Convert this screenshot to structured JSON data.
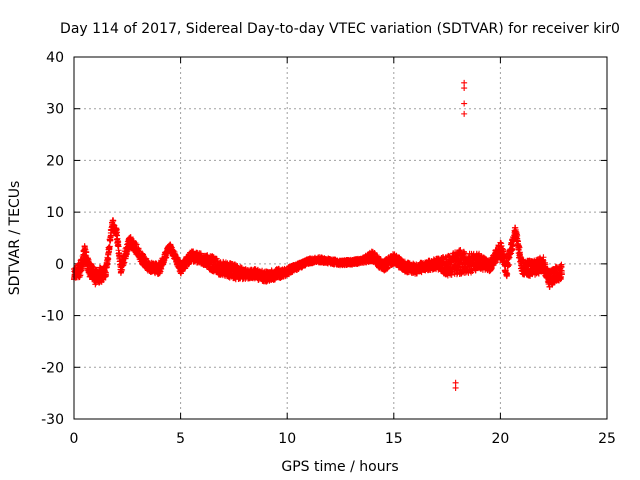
{
  "chart_data": {
    "type": "scatter",
    "title": "Day 114 of 2017, Sidereal Day-to-day VTEC variation (SDTVAR) for receiver kir0",
    "xlabel": "GPS time / hours",
    "ylabel": "SDTVAR / TECUs",
    "xlim": [
      0,
      25
    ],
    "ylim": [
      -30,
      40
    ],
    "xticks": [
      0,
      5,
      10,
      15,
      20,
      25
    ],
    "yticks": [
      -30,
      -20,
      -10,
      0,
      10,
      20,
      30,
      40
    ],
    "xtick_labels": [
      "0",
      "5",
      "10",
      "15",
      "20",
      "25"
    ],
    "ytick_labels": [
      "-30",
      "-20",
      "-10",
      "0",
      "10",
      "20",
      "30",
      "40"
    ],
    "grid": true,
    "marker": "+",
    "color": "#ff0000",
    "series": [
      {
        "name": "SDTVAR",
        "outliers": [
          {
            "x": 18.3,
            "y": 35.0
          },
          {
            "x": 18.3,
            "y": 34.0
          },
          {
            "x": 18.3,
            "y": 31.0
          },
          {
            "x": 18.3,
            "y": 29.0
          },
          {
            "x": 17.9,
            "y": -23.0
          },
          {
            "x": 17.9,
            "y": -24.0
          }
        ],
        "trace": [
          {
            "x": 0.0,
            "y": -2.0,
            "spread": 1.0
          },
          {
            "x": 0.3,
            "y": -1.0,
            "spread": 1.5
          },
          {
            "x": 0.5,
            "y": 2.0,
            "spread": 1.5
          },
          {
            "x": 0.7,
            "y": -1.0,
            "spread": 1.5
          },
          {
            "x": 1.0,
            "y": -2.5,
            "spread": 1.5
          },
          {
            "x": 1.3,
            "y": -2.0,
            "spread": 1.5
          },
          {
            "x": 1.5,
            "y": -1.5,
            "spread": 1.0
          },
          {
            "x": 1.8,
            "y": 8.0,
            "spread": 0.8
          },
          {
            "x": 2.0,
            "y": 6.0,
            "spread": 0.8
          },
          {
            "x": 2.2,
            "y": -1.0,
            "spread": 1.0
          },
          {
            "x": 2.6,
            "y": 4.5,
            "spread": 1.0
          },
          {
            "x": 2.9,
            "y": 3.0,
            "spread": 1.0
          },
          {
            "x": 3.2,
            "y": 1.0,
            "spread": 1.0
          },
          {
            "x": 3.5,
            "y": -0.5,
            "spread": 1.0
          },
          {
            "x": 4.0,
            "y": -1.0,
            "spread": 1.0
          },
          {
            "x": 4.5,
            "y": 3.5,
            "spread": 0.5
          },
          {
            "x": 5.0,
            "y": -1.0,
            "spread": 1.0
          },
          {
            "x": 5.5,
            "y": 1.5,
            "spread": 1.0
          },
          {
            "x": 6.0,
            "y": 1.0,
            "spread": 1.0
          },
          {
            "x": 6.5,
            "y": 0.0,
            "spread": 1.5
          },
          {
            "x": 7.0,
            "y": -1.0,
            "spread": 1.5
          },
          {
            "x": 7.5,
            "y": -1.5,
            "spread": 1.5
          },
          {
            "x": 8.0,
            "y": -2.0,
            "spread": 1.0
          },
          {
            "x": 8.5,
            "y": -2.0,
            "spread": 1.0
          },
          {
            "x": 9.0,
            "y": -2.5,
            "spread": 1.0
          },
          {
            "x": 9.5,
            "y": -2.0,
            "spread": 1.0
          },
          {
            "x": 10.0,
            "y": -1.5,
            "spread": 0.8
          },
          {
            "x": 10.5,
            "y": -0.5,
            "spread": 0.6
          },
          {
            "x": 11.0,
            "y": 0.5,
            "spread": 0.5
          },
          {
            "x": 11.5,
            "y": 0.8,
            "spread": 0.5
          },
          {
            "x": 12.0,
            "y": 0.5,
            "spread": 0.5
          },
          {
            "x": 12.5,
            "y": 0.2,
            "spread": 0.5
          },
          {
            "x": 13.0,
            "y": 0.3,
            "spread": 0.5
          },
          {
            "x": 13.5,
            "y": 0.6,
            "spread": 0.5
          },
          {
            "x": 14.0,
            "y": 1.5,
            "spread": 1.0
          },
          {
            "x": 14.5,
            "y": -0.5,
            "spread": 1.0
          },
          {
            "x": 15.0,
            "y": 1.0,
            "spread": 1.0
          },
          {
            "x": 15.5,
            "y": -0.5,
            "spread": 1.0
          },
          {
            "x": 16.0,
            "y": -1.0,
            "spread": 1.0
          },
          {
            "x": 16.5,
            "y": -0.5,
            "spread": 1.0
          },
          {
            "x": 17.0,
            "y": 0.0,
            "spread": 1.0
          },
          {
            "x": 17.5,
            "y": -0.5,
            "spread": 2.0
          },
          {
            "x": 18.0,
            "y": 0.5,
            "spread": 2.5
          },
          {
            "x": 18.5,
            "y": 0.0,
            "spread": 2.0
          },
          {
            "x": 19.0,
            "y": 0.5,
            "spread": 1.5
          },
          {
            "x": 19.5,
            "y": -0.5,
            "spread": 1.0
          },
          {
            "x": 20.0,
            "y": 3.0,
            "spread": 1.5
          },
          {
            "x": 20.3,
            "y": -1.0,
            "spread": 1.5
          },
          {
            "x": 20.7,
            "y": 6.5,
            "spread": 0.8
          },
          {
            "x": 21.0,
            "y": -0.5,
            "spread": 1.5
          },
          {
            "x": 21.5,
            "y": -1.0,
            "spread": 1.5
          },
          {
            "x": 22.0,
            "y": 0.0,
            "spread": 1.5
          },
          {
            "x": 22.3,
            "y": -3.0,
            "spread": 1.5
          },
          {
            "x": 22.6,
            "y": -2.0,
            "spread": 1.5
          },
          {
            "x": 22.9,
            "y": -1.5,
            "spread": 1.5
          }
        ]
      }
    ]
  }
}
